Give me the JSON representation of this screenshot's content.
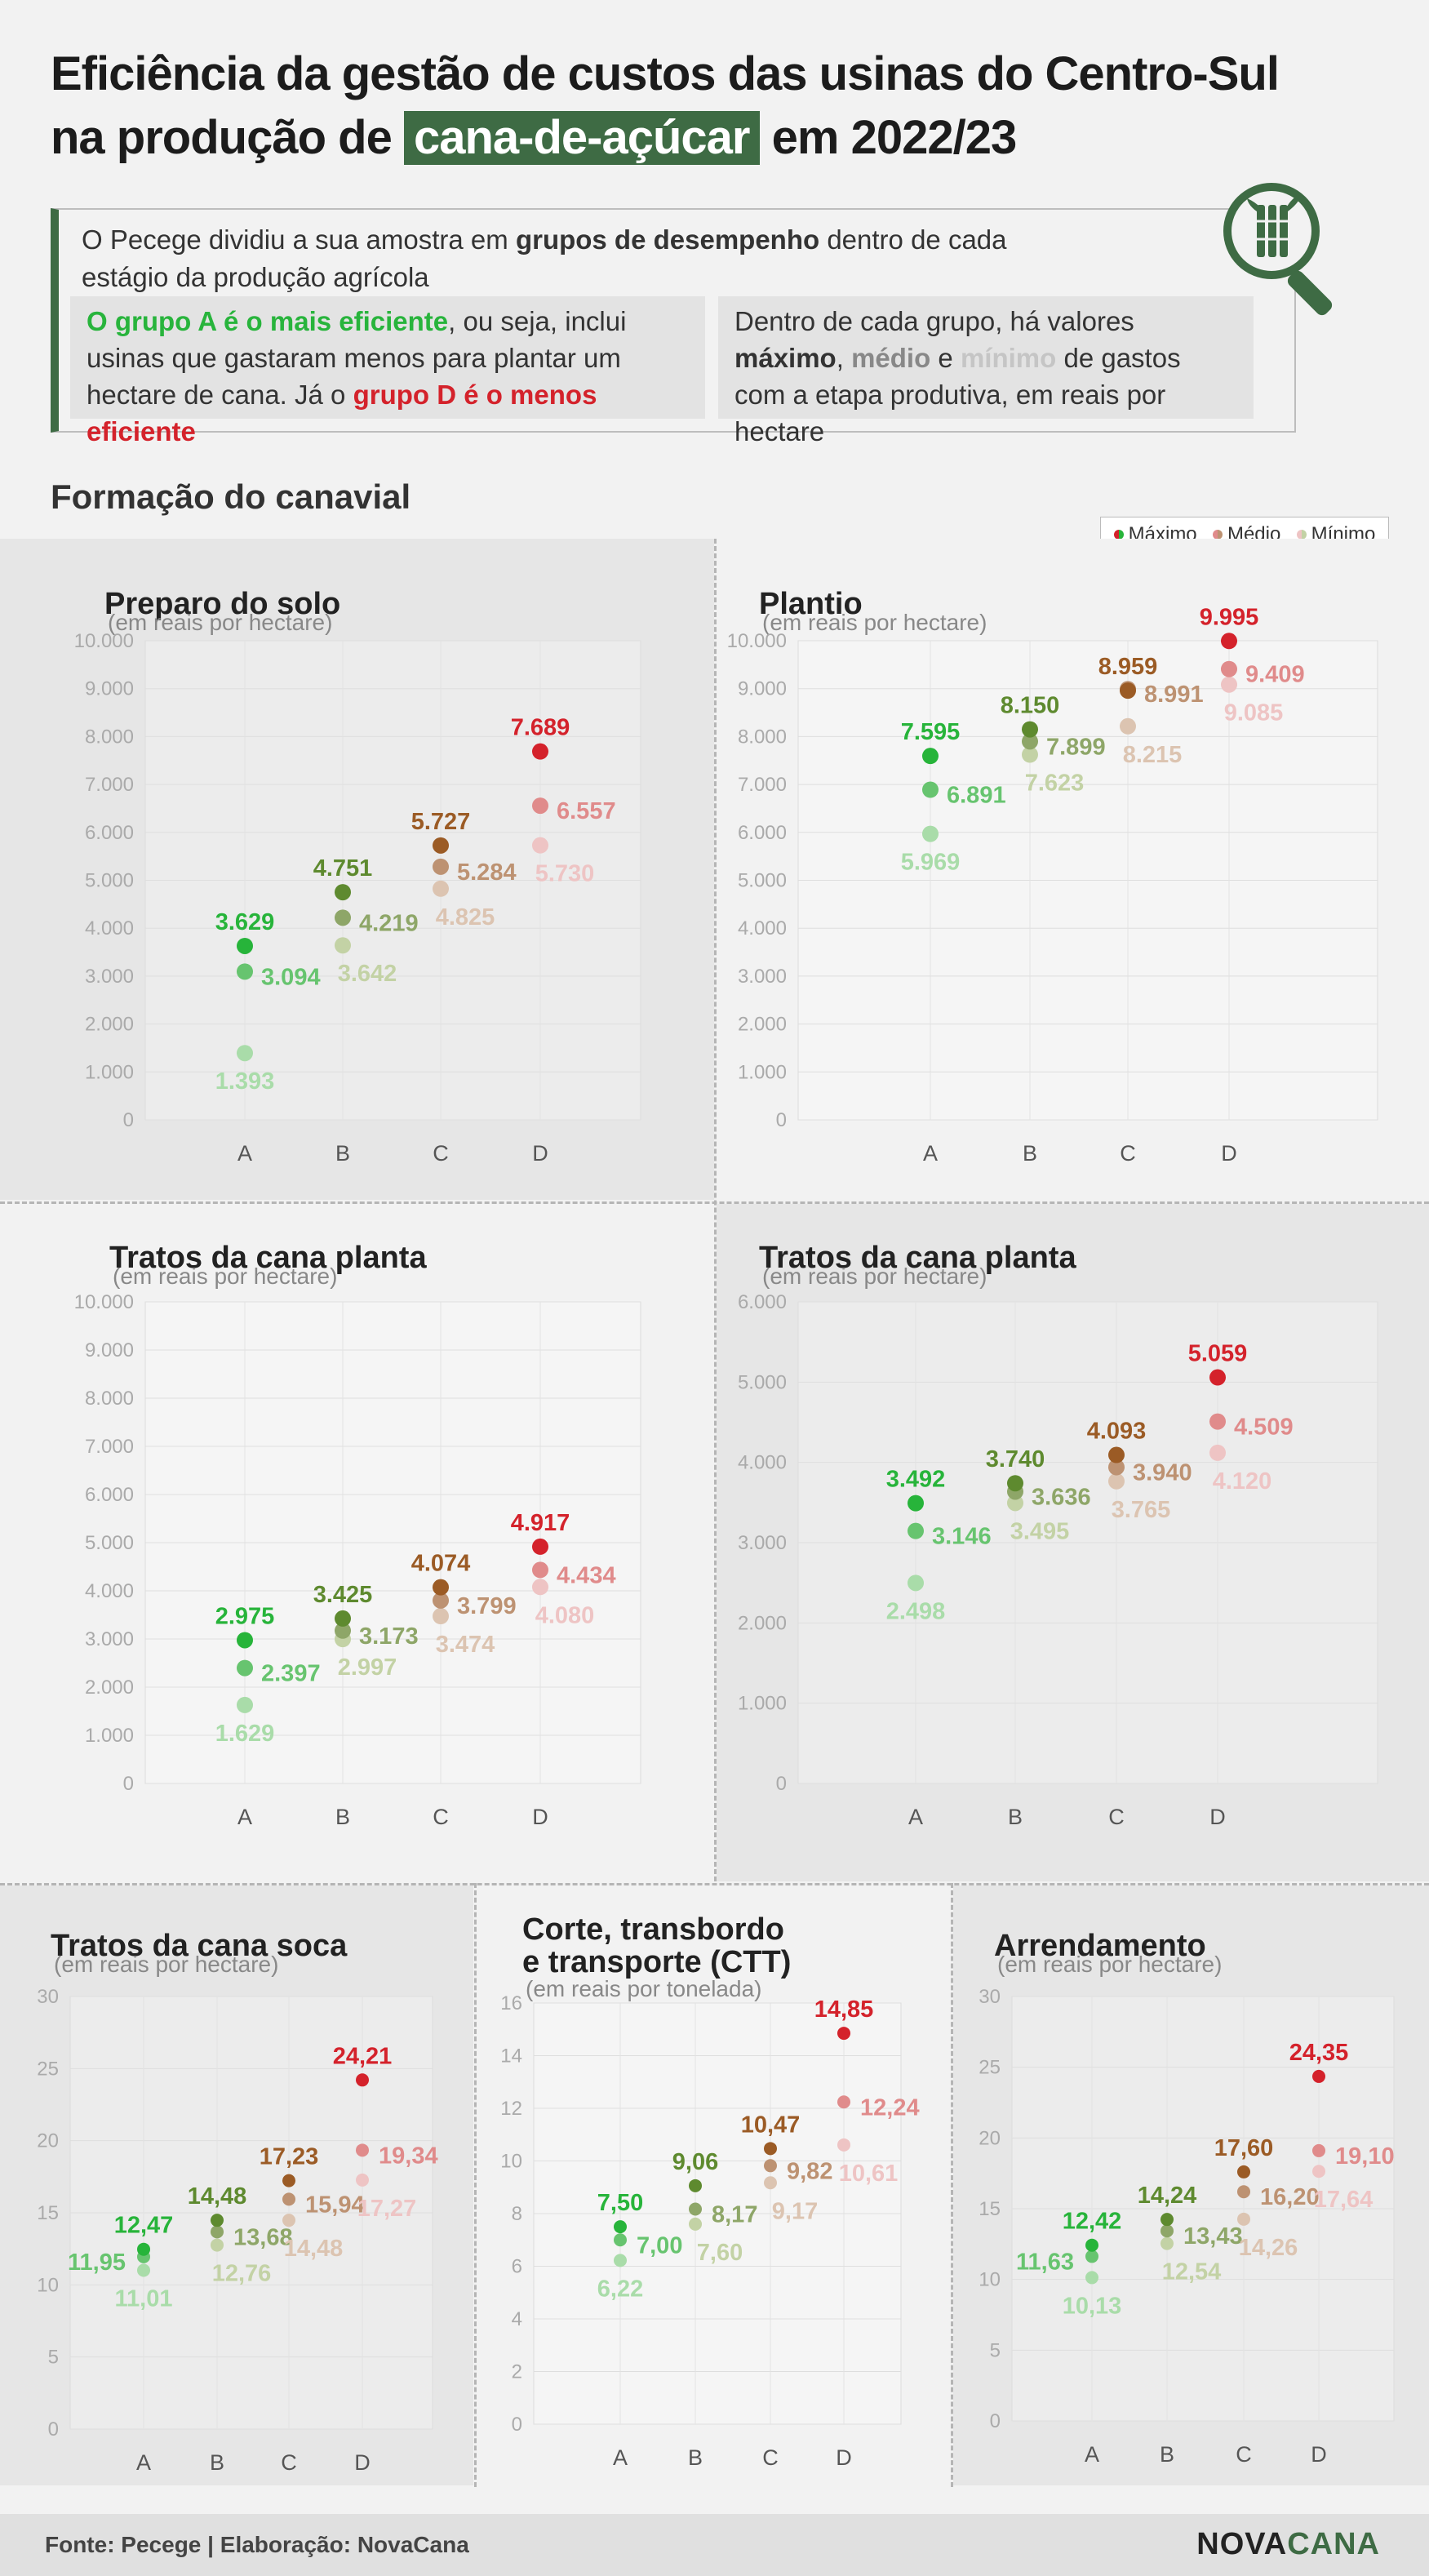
{
  "title": {
    "line1": "Eficiência da gestão de custos das usinas do Centro-Sul",
    "line2_pre": "na produção de",
    "highlight": "cana-de-açúcar",
    "line2_post": "em 2022/23"
  },
  "intro": {
    "p1_a": "O Pecege dividiu a sua amostra em ",
    "p1_b": "grupos de desempenho",
    "p1_c": " dentro de cada estágio da produção agrícola",
    "left_a": "O grupo A é o mais eficiente",
    "left_b": ", ou seja, inclui usinas que gastaram menos para plantar um hectare de cana. Já o ",
    "left_c": "grupo D é o menos eficiente",
    "right_a": "Dentro de cada grupo, há valores ",
    "right_max": "máximo",
    "right_sep1": ", ",
    "right_med": "médio",
    "right_sep2": " e ",
    "right_min": "mínimo",
    "right_b": " de gastos com a etapa produtiva, em reais por hectare"
  },
  "section_title": "Formação do canavial",
  "legend": {
    "max": "Máximo",
    "med": "Médio",
    "min": "Mínimo"
  },
  "colors": {
    "A": [
      "#27b43a",
      "#67c46f",
      "#a9dca9"
    ],
    "B": [
      "#5e8a2f",
      "#8ea668",
      "#c3d2a5"
    ],
    "C": [
      "#9b5b25",
      "#bd9272",
      "#dcc4b1"
    ],
    "D": [
      "#d4222b",
      "#e08b8b",
      "#eec4c4"
    ]
  },
  "chart_data": [
    {
      "type": "scatter",
      "title": "Preparo do solo",
      "subtitle": "(em reais por hectare)",
      "categories": [
        "A",
        "B",
        "C",
        "D"
      ],
      "ylim": [
        0,
        10000
      ],
      "yticks": [
        "0",
        "1.000",
        "2.000",
        "3.000",
        "4.000",
        "5.000",
        "6.000",
        "7.000",
        "8.000",
        "9.000",
        "10.000"
      ],
      "series": [
        {
          "name": "Máximo",
          "values": [
            3629,
            4751,
            5727,
            7689
          ],
          "labels": [
            "3.629",
            "4.751",
            "5.727",
            "7.689"
          ]
        },
        {
          "name": "Médio",
          "values": [
            3094,
            4219,
            5284,
            6557
          ],
          "labels": [
            "3.094",
            "4.219",
            "5.284",
            "6.557"
          ]
        },
        {
          "name": "Mínimo",
          "values": [
            1393,
            3642,
            4825,
            5730
          ],
          "labels": [
            "1.393",
            "3.642",
            "4.825",
            "5.730"
          ]
        }
      ]
    },
    {
      "type": "scatter",
      "title": "Plantio",
      "subtitle": "(em reais por hectare)",
      "categories": [
        "A",
        "B",
        "C",
        "D"
      ],
      "ylim": [
        0,
        10000
      ],
      "yticks": [
        "0",
        "1.000",
        "2.000",
        "3.000",
        "4.000",
        "5.000",
        "6.000",
        "7.000",
        "8.000",
        "9.000",
        "10.000"
      ],
      "series": [
        {
          "name": "Máximo",
          "values": [
            7595,
            8150,
            8959,
            9995
          ],
          "labels": [
            "7.595",
            "8.150",
            "8.959",
            "9.995"
          ]
        },
        {
          "name": "Médio",
          "values": [
            6891,
            7899,
            8991,
            9409
          ],
          "labels": [
            "6.891",
            "7.899",
            "8.991",
            "9.409"
          ]
        },
        {
          "name": "Mínimo",
          "values": [
            5969,
            7623,
            8215,
            9085
          ],
          "labels": [
            "5.969",
            "7.623",
            "8.215",
            "9.085"
          ]
        }
      ]
    },
    {
      "type": "scatter",
      "title": "Tratos da cana planta",
      "subtitle": "(em reais por hectare)",
      "categories": [
        "A",
        "B",
        "C",
        "D"
      ],
      "ylim": [
        0,
        10000
      ],
      "yticks": [
        "0",
        "1.000",
        "2.000",
        "3.000",
        "4.000",
        "5.000",
        "6.000",
        "7.000",
        "8.000",
        "9.000",
        "10.000"
      ],
      "series": [
        {
          "name": "Máximo",
          "values": [
            2975,
            3425,
            4074,
            4917
          ],
          "labels": [
            "2.975",
            "3.425",
            "4.074",
            "4.917"
          ]
        },
        {
          "name": "Médio",
          "values": [
            2397,
            3173,
            3799,
            4434
          ],
          "labels": [
            "2.397",
            "3.173",
            "3.799",
            "4.434"
          ]
        },
        {
          "name": "Mínimo",
          "values": [
            1629,
            2997,
            3474,
            4080
          ],
          "labels": [
            "1.629",
            "2.997",
            "3.474",
            "4.080"
          ]
        }
      ]
    },
    {
      "type": "scatter",
      "title": "Tratos da cana planta",
      "subtitle": "(em reais por hectare)",
      "categories": [
        "A",
        "B",
        "C",
        "D"
      ],
      "ylim": [
        0,
        6000
      ],
      "yticks": [
        "0",
        "1.000",
        "2.000",
        "3.000",
        "4.000",
        "5.000",
        "6.000"
      ],
      "series": [
        {
          "name": "Máximo",
          "values": [
            3492,
            3740,
            4093,
            5059
          ],
          "labels": [
            "3.492",
            "3.740",
            "4.093",
            "5.059"
          ]
        },
        {
          "name": "Médio",
          "values": [
            3146,
            3636,
            3940,
            4509
          ],
          "labels": [
            "3.146",
            "3.636",
            "3.940",
            "4.509"
          ]
        },
        {
          "name": "Mínimo",
          "values": [
            2498,
            3495,
            3765,
            4120
          ],
          "labels": [
            "2.498",
            "3.495",
            "3.765",
            "4.120"
          ]
        }
      ]
    },
    {
      "type": "scatter",
      "title": "Tratos da cana soca",
      "subtitle": "(em reais por hectare)",
      "categories": [
        "A",
        "B",
        "C",
        "D"
      ],
      "ylim": [
        0,
        30
      ],
      "yticks": [
        "0",
        "5",
        "10",
        "15",
        "20",
        "25",
        "30"
      ],
      "series": [
        {
          "name": "Máximo",
          "values": [
            12.47,
            14.48,
            17.23,
            24.21
          ],
          "labels": [
            "12,47",
            "14,48",
            "17,23",
            "24,21"
          ]
        },
        {
          "name": "Médio",
          "values": [
            11.95,
            13.68,
            15.94,
            19.34
          ],
          "labels": [
            "11,95",
            "13,68",
            "15,94",
            "19,34"
          ]
        },
        {
          "name": "Mínimo",
          "values": [
            11.01,
            12.76,
            14.48,
            17.27
          ],
          "labels": [
            "11,01",
            "12,76",
            "14,48",
            "17,27"
          ]
        }
      ]
    },
    {
      "type": "scatter",
      "title": "Corte, transbordo",
      "title2": "e transporte (CTT)",
      "subtitle": "(em reais por tonelada)",
      "categories": [
        "A",
        "B",
        "C",
        "D"
      ],
      "ylim": [
        0,
        16
      ],
      "yticks": [
        "0",
        "2",
        "4",
        "6",
        "8",
        "10",
        "12",
        "14",
        "16"
      ],
      "series": [
        {
          "name": "Máximo",
          "values": [
            7.5,
            9.06,
            10.47,
            14.85
          ],
          "labels": [
            "7,50",
            "9,06",
            "10,47",
            "14,85"
          ]
        },
        {
          "name": "Médio",
          "values": [
            7.0,
            8.17,
            9.82,
            12.24
          ],
          "labels": [
            "7,00",
            "8,17",
            "9,82",
            "12,24"
          ]
        },
        {
          "name": "Mínimo",
          "values": [
            6.22,
            7.6,
            9.17,
            10.61
          ],
          "labels": [
            "6,22",
            "7,60",
            "9,17",
            "10,61"
          ]
        }
      ]
    },
    {
      "type": "scatter",
      "title": "Arrendamento",
      "subtitle": "(em reais por hectare)",
      "categories": [
        "A",
        "B",
        "C",
        "D"
      ],
      "ylim": [
        0,
        30
      ],
      "yticks": [
        "0",
        "5",
        "10",
        "15",
        "20",
        "25",
        "30"
      ],
      "series": [
        {
          "name": "Máximo",
          "values": [
            12.42,
            14.24,
            17.6,
            24.35
          ],
          "labels": [
            "12,42",
            "14,24",
            "17,60",
            "24,35"
          ]
        },
        {
          "name": "Médio",
          "values": [
            11.63,
            13.43,
            16.2,
            19.1
          ],
          "labels": [
            "11,63",
            "13,43",
            "16,20",
            "19,10"
          ]
        },
        {
          "name": "Mínimo",
          "values": [
            10.13,
            12.54,
            14.26,
            17.64
          ],
          "labels": [
            "10,13",
            "12,54",
            "14,26",
            "17,64"
          ]
        }
      ]
    }
  ],
  "footer": {
    "source": "Fonte: Pecege | Elaboração: NovaCana",
    "brand_a": "NOVA",
    "brand_b": "CANA"
  }
}
